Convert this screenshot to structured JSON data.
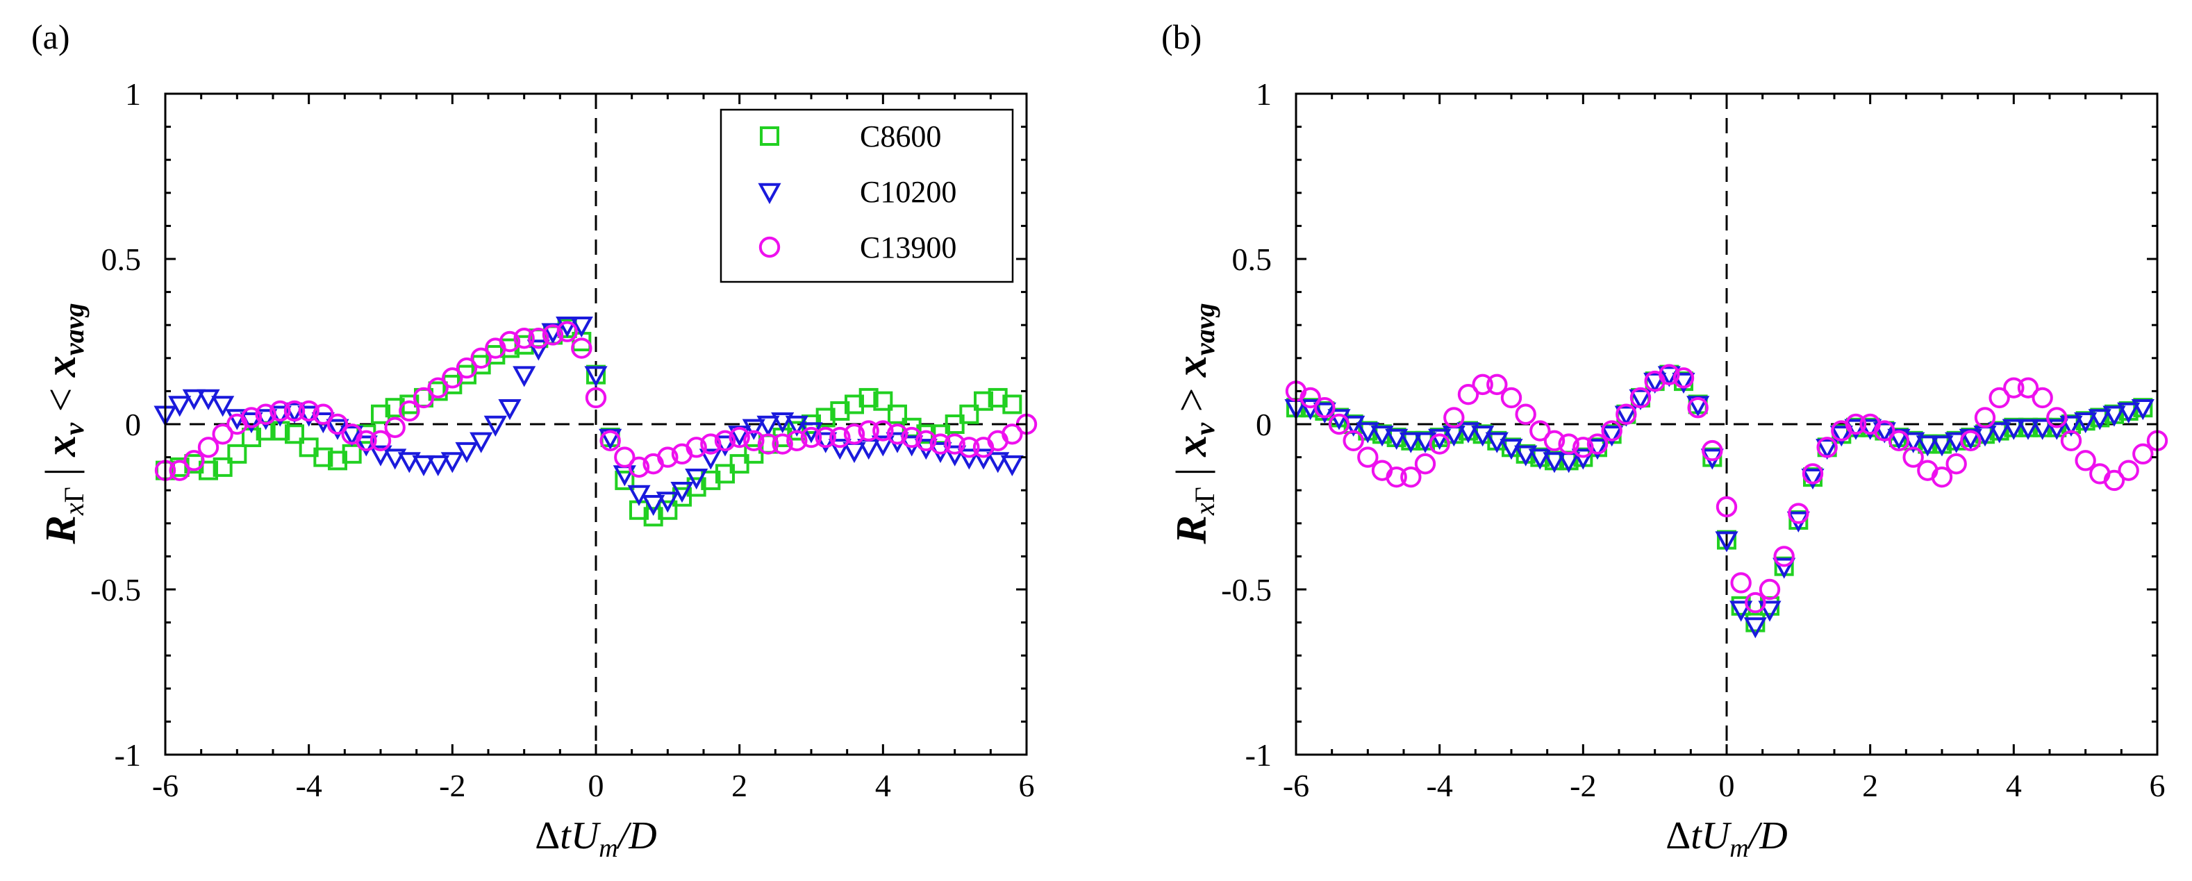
{
  "chart_data": [
    {
      "type": "scatter",
      "panel_label": "(a)",
      "xlabel": "ΔtU_m/D",
      "ylabel": "R_xΓ | x_v < x_vavg",
      "xlim": [
        -6,
        6
      ],
      "ylim": [
        -1,
        1
      ],
      "xticks": [
        -6,
        -4,
        -2,
        0,
        2,
        4,
        6
      ],
      "xtick_labels": [
        "-6",
        "-4",
        "-2",
        "0",
        "2",
        "4",
        "6"
      ],
      "yticks": [
        -1,
        -0.5,
        0,
        0.5,
        1
      ],
      "ytick_labels": [
        "-1",
        "-0.5",
        "0",
        "0.5",
        "1"
      ],
      "reference_lines": [
        "x = 0 (dashed)",
        "y = 0 (dashed)"
      ],
      "legend": {
        "position": "top-right",
        "entries": [
          "C8600",
          "C10200",
          "C13900"
        ]
      },
      "series": [
        {
          "name": "C8600",
          "marker": "square",
          "color": "#22d022",
          "x": [
            -6.0,
            -5.8,
            -5.6,
            -5.4,
            -5.2,
            -5.0,
            -4.8,
            -4.6,
            -4.4,
            -4.2,
            -4.0,
            -3.8,
            -3.6,
            -3.4,
            -3.2,
            -3.0,
            -2.8,
            -2.6,
            -2.4,
            -2.2,
            -2.0,
            -1.8,
            -1.6,
            -1.4,
            -1.2,
            -1.0,
            -0.8,
            -0.6,
            -0.4,
            -0.2,
            0.0,
            0.2,
            0.4,
            0.6,
            0.8,
            1.0,
            1.2,
            1.4,
            1.6,
            1.8,
            2.0,
            2.2,
            2.4,
            2.6,
            2.8,
            3.0,
            3.2,
            3.4,
            3.6,
            3.8,
            4.0,
            4.2,
            4.4,
            4.6,
            4.8,
            5.0,
            5.2,
            5.4,
            5.6,
            5.8
          ],
          "y": [
            -0.14,
            -0.13,
            -0.12,
            -0.14,
            -0.13,
            -0.09,
            -0.04,
            -0.02,
            -0.02,
            -0.03,
            -0.07,
            -0.1,
            -0.11,
            -0.09,
            -0.03,
            0.03,
            0.05,
            0.06,
            0.08,
            0.1,
            0.12,
            0.15,
            0.18,
            0.21,
            0.23,
            0.24,
            0.26,
            0.27,
            0.29,
            0.25,
            0.15,
            -0.04,
            -0.17,
            -0.26,
            -0.28,
            -0.26,
            -0.22,
            -0.19,
            -0.17,
            -0.15,
            -0.12,
            -0.09,
            -0.06,
            -0.04,
            -0.02,
            0.0,
            0.02,
            0.04,
            0.06,
            0.08,
            0.07,
            0.03,
            -0.01,
            -0.03,
            -0.03,
            0.0,
            0.03,
            0.07,
            0.08,
            0.06
          ]
        },
        {
          "name": "C10200",
          "marker": "triangle-down",
          "color": "#1a1adc",
          "x": [
            -6.0,
            -5.8,
            -5.6,
            -5.4,
            -5.2,
            -5.0,
            -4.8,
            -4.6,
            -4.4,
            -4.2,
            -4.0,
            -3.8,
            -3.6,
            -3.4,
            -3.2,
            -3.0,
            -2.8,
            -2.6,
            -2.4,
            -2.2,
            -2.0,
            -1.8,
            -1.6,
            -1.4,
            -1.2,
            -1.0,
            -0.8,
            -0.6,
            -0.4,
            -0.2,
            0.0,
            0.2,
            0.4,
            0.6,
            0.8,
            1.0,
            1.2,
            1.4,
            1.6,
            1.8,
            2.0,
            2.2,
            2.4,
            2.6,
            2.8,
            3.0,
            3.2,
            3.4,
            3.6,
            3.8,
            4.0,
            4.2,
            4.4,
            4.6,
            4.8,
            5.0,
            5.2,
            5.4,
            5.6,
            5.8
          ],
          "y": [
            0.03,
            0.06,
            0.08,
            0.08,
            0.06,
            0.02,
            0.01,
            0.02,
            0.03,
            0.04,
            0.03,
            0.01,
            -0.01,
            -0.03,
            -0.06,
            -0.09,
            -0.1,
            -0.11,
            -0.12,
            -0.12,
            -0.11,
            -0.08,
            -0.05,
            0.0,
            0.05,
            0.15,
            0.23,
            0.28,
            0.3,
            0.3,
            0.15,
            -0.04,
            -0.15,
            -0.21,
            -0.24,
            -0.23,
            -0.2,
            -0.16,
            -0.1,
            -0.06,
            -0.03,
            -0.01,
            0.0,
            0.01,
            0.0,
            -0.02,
            -0.05,
            -0.07,
            -0.08,
            -0.07,
            -0.06,
            -0.05,
            -0.06,
            -0.07,
            -0.08,
            -0.09,
            -0.1,
            -0.1,
            -0.11,
            -0.12
          ]
        },
        {
          "name": "C13900",
          "marker": "circle",
          "color": "#ee10ee",
          "x": [
            -6.0,
            -5.8,
            -5.6,
            -5.4,
            -5.2,
            -5.0,
            -4.8,
            -4.6,
            -4.4,
            -4.2,
            -4.0,
            -3.8,
            -3.6,
            -3.4,
            -3.2,
            -3.0,
            -2.8,
            -2.6,
            -2.4,
            -2.2,
            -2.0,
            -1.8,
            -1.6,
            -1.4,
            -1.2,
            -1.0,
            -0.8,
            -0.6,
            -0.4,
            -0.2,
            0.0,
            0.2,
            0.4,
            0.6,
            0.8,
            1.0,
            1.2,
            1.4,
            1.6,
            1.8,
            2.0,
            2.2,
            2.4,
            2.6,
            2.8,
            3.0,
            3.2,
            3.4,
            3.6,
            3.8,
            4.0,
            4.2,
            4.4,
            4.6,
            4.8,
            5.0,
            5.2,
            5.4,
            5.6,
            5.8,
            6.0
          ],
          "y": [
            -0.14,
            -0.14,
            -0.11,
            -0.07,
            -0.03,
            0.0,
            0.02,
            0.03,
            0.04,
            0.04,
            0.04,
            0.03,
            0.0,
            -0.03,
            -0.05,
            -0.05,
            -0.01,
            0.04,
            0.08,
            0.11,
            0.14,
            0.17,
            0.2,
            0.23,
            0.25,
            0.26,
            0.26,
            0.27,
            0.28,
            0.23,
            0.08,
            -0.05,
            -0.1,
            -0.13,
            -0.12,
            -0.1,
            -0.09,
            -0.07,
            -0.06,
            -0.05,
            -0.04,
            -0.05,
            -0.06,
            -0.06,
            -0.05,
            -0.04,
            -0.04,
            -0.04,
            -0.03,
            -0.02,
            -0.02,
            -0.03,
            -0.04,
            -0.05,
            -0.06,
            -0.06,
            -0.07,
            -0.07,
            -0.05,
            -0.03,
            0.0
          ]
        }
      ]
    },
    {
      "type": "scatter",
      "panel_label": "(b)",
      "xlabel": "ΔtU_m/D",
      "ylabel": "R_xΓ | x_v > x_vavg",
      "xlim": [
        -6,
        6
      ],
      "ylim": [
        -1,
        1
      ],
      "xticks": [
        -6,
        -4,
        -2,
        0,
        2,
        4,
        6
      ],
      "xtick_labels": [
        "-6",
        "-4",
        "-2",
        "0",
        "2",
        "4",
        "6"
      ],
      "yticks": [
        -1,
        -0.5,
        0,
        0.5,
        1
      ],
      "ytick_labels": [
        "-1",
        "-0.5",
        "0",
        "0.5",
        "1"
      ],
      "reference_lines": [
        "x = 0 (dashed)",
        "y = 0 (dashed)"
      ],
      "series": [
        {
          "name": "C8600",
          "marker": "square",
          "color": "#22d022",
          "x": [
            -6.0,
            -5.8,
            -5.6,
            -5.4,
            -5.2,
            -5.0,
            -4.8,
            -4.6,
            -4.4,
            -4.2,
            -4.0,
            -3.8,
            -3.6,
            -3.4,
            -3.2,
            -3.0,
            -2.8,
            -2.6,
            -2.4,
            -2.2,
            -2.0,
            -1.8,
            -1.6,
            -1.4,
            -1.2,
            -1.0,
            -0.8,
            -0.6,
            -0.4,
            -0.2,
            0.0,
            0.2,
            0.4,
            0.6,
            0.8,
            1.0,
            1.2,
            1.4,
            1.6,
            1.8,
            2.0,
            2.2,
            2.4,
            2.6,
            2.8,
            3.0,
            3.2,
            3.4,
            3.6,
            3.8,
            4.0,
            4.2,
            4.4,
            4.6,
            4.8,
            5.0,
            5.2,
            5.4,
            5.6,
            5.8
          ],
          "y": [
            0.05,
            0.05,
            0.04,
            0.02,
            0.0,
            -0.02,
            -0.03,
            -0.04,
            -0.05,
            -0.05,
            -0.04,
            -0.03,
            -0.02,
            -0.03,
            -0.05,
            -0.07,
            -0.09,
            -0.1,
            -0.11,
            -0.11,
            -0.1,
            -0.07,
            -0.03,
            0.03,
            0.08,
            0.13,
            0.15,
            0.13,
            0.06,
            -0.1,
            -0.35,
            -0.55,
            -0.6,
            -0.55,
            -0.43,
            -0.29,
            -0.16,
            -0.07,
            -0.03,
            -0.01,
            -0.01,
            -0.02,
            -0.04,
            -0.05,
            -0.06,
            -0.06,
            -0.05,
            -0.04,
            -0.03,
            -0.02,
            -0.01,
            -0.01,
            -0.01,
            -0.01,
            0.0,
            0.01,
            0.02,
            0.03,
            0.04,
            0.05
          ]
        },
        {
          "name": "C10200",
          "marker": "triangle-down",
          "color": "#1a1adc",
          "x": [
            -6.0,
            -5.8,
            -5.6,
            -5.4,
            -5.2,
            -5.0,
            -4.8,
            -4.6,
            -4.4,
            -4.2,
            -4.0,
            -3.8,
            -3.6,
            -3.4,
            -3.2,
            -3.0,
            -2.8,
            -2.6,
            -2.4,
            -2.2,
            -2.0,
            -1.8,
            -1.6,
            -1.4,
            -1.2,
            -1.0,
            -0.8,
            -0.6,
            -0.4,
            -0.2,
            0.0,
            0.2,
            0.4,
            0.6,
            0.8,
            1.0,
            1.2,
            1.4,
            1.6,
            1.8,
            2.0,
            2.2,
            2.4,
            2.6,
            2.8,
            3.0,
            3.2,
            3.4,
            3.6,
            3.8,
            4.0,
            4.2,
            4.4,
            4.6,
            4.8,
            5.0,
            5.2,
            5.4,
            5.6,
            5.8
          ],
          "y": [
            0.05,
            0.05,
            0.04,
            0.02,
            0.0,
            -0.02,
            -0.03,
            -0.04,
            -0.05,
            -0.05,
            -0.04,
            -0.03,
            -0.02,
            -0.03,
            -0.05,
            -0.07,
            -0.09,
            -0.1,
            -0.11,
            -0.11,
            -0.1,
            -0.07,
            -0.03,
            0.03,
            0.08,
            0.13,
            0.15,
            0.13,
            0.06,
            -0.1,
            -0.35,
            -0.56,
            -0.61,
            -0.56,
            -0.43,
            -0.29,
            -0.16,
            -0.07,
            -0.03,
            -0.01,
            -0.01,
            -0.02,
            -0.04,
            -0.05,
            -0.06,
            -0.06,
            -0.05,
            -0.04,
            -0.03,
            -0.02,
            -0.01,
            -0.01,
            -0.01,
            -0.01,
            0.0,
            0.01,
            0.02,
            0.03,
            0.04,
            0.05
          ]
        },
        {
          "name": "C13900",
          "marker": "circle",
          "color": "#ee10ee",
          "x": [
            -6.0,
            -5.8,
            -5.6,
            -5.4,
            -5.2,
            -5.0,
            -4.8,
            -4.6,
            -4.4,
            -4.2,
            -4.0,
            -3.8,
            -3.6,
            -3.4,
            -3.2,
            -3.0,
            -2.8,
            -2.6,
            -2.4,
            -2.2,
            -2.0,
            -1.8,
            -1.6,
            -1.4,
            -1.2,
            -1.0,
            -0.8,
            -0.6,
            -0.4,
            -0.2,
            0.0,
            0.2,
            0.4,
            0.6,
            0.8,
            1.0,
            1.2,
            1.4,
            1.6,
            1.8,
            2.0,
            2.2,
            2.4,
            2.6,
            2.8,
            3.0,
            3.2,
            3.4,
            3.6,
            3.8,
            4.0,
            4.2,
            4.4,
            4.6,
            4.8,
            5.0,
            5.2,
            5.4,
            5.6,
            5.8,
            6.0
          ],
          "y": [
            0.1,
            0.08,
            0.05,
            0.0,
            -0.05,
            -0.1,
            -0.14,
            -0.16,
            -0.16,
            -0.12,
            -0.06,
            0.02,
            0.09,
            0.12,
            0.12,
            0.08,
            0.03,
            -0.02,
            -0.05,
            -0.06,
            -0.07,
            -0.06,
            -0.02,
            0.03,
            0.08,
            0.13,
            0.15,
            0.14,
            0.05,
            -0.08,
            -0.25,
            -0.48,
            -0.54,
            -0.5,
            -0.4,
            -0.27,
            -0.15,
            -0.07,
            -0.02,
            0.0,
            0.0,
            -0.02,
            -0.05,
            -0.1,
            -0.14,
            -0.16,
            -0.12,
            -0.05,
            0.02,
            0.08,
            0.11,
            0.11,
            0.08,
            0.02,
            -0.05,
            -0.11,
            -0.15,
            -0.17,
            -0.14,
            -0.09,
            -0.05
          ]
        }
      ]
    }
  ]
}
